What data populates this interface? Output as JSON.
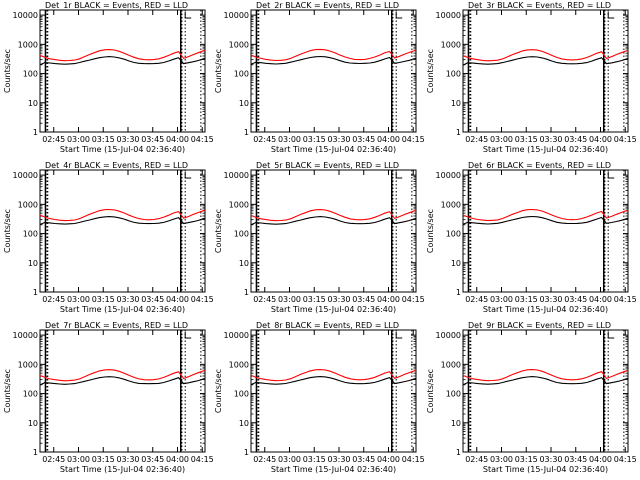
{
  "chart_data": {
    "type": "line",
    "grid": false,
    "legend": "title",
    "xlabel": "Start Time (15-Jul-04 02:36:40)",
    "ylabel": "Counts/sec",
    "x_tick_labels": [
      "02:45",
      "03:00",
      "03:15",
      "03:30",
      "03:45",
      "04:00",
      "04:15"
    ],
    "x_ticks_min": [
      8.33,
      23.33,
      38.33,
      53.33,
      68.33,
      83.33,
      98.33
    ],
    "xlim": [
      0,
      100
    ],
    "y_tick_labels": [
      "1",
      "10",
      "100",
      "1000",
      "10000"
    ],
    "y_ticks": [
      1,
      10,
      100,
      1000,
      10000
    ],
    "ylim": [
      1,
      15000
    ],
    "yscale": "log",
    "markers_min": [
      3.3,
      4.2,
      4.7,
      85.3,
      86.0,
      88.0,
      97.5
    ],
    "x_min": [
      0,
      3,
      6,
      9,
      12,
      15,
      18,
      21,
      24,
      27,
      30,
      33,
      36,
      39,
      42,
      45,
      48,
      51,
      54,
      57,
      60,
      63,
      66,
      69,
      72,
      75,
      78,
      81,
      84,
      87,
      90,
      93,
      96,
      99,
      100
    ],
    "panels": [
      {
        "title": "Det_1r BLACK = Events, RED = LLD",
        "series": [
          {
            "name": "Events",
            "color": "#000000",
            "values": [
              200,
              240,
              230,
              220,
              215,
              210,
              215,
              220,
              240,
              265,
              290,
              320,
              350,
              370,
              380,
              370,
              345,
              310,
              270,
              240,
              225,
              220,
              218,
              220,
              225,
              240,
              270,
              310,
              350,
              220,
              235,
              255,
              280,
              320,
              330
            ]
          },
          {
            "name": "LLD",
            "color": "#ff0000",
            "values": [
              420,
              360,
              320,
              300,
              285,
              275,
              280,
              290,
              320,
              380,
              450,
              520,
              600,
              650,
              660,
              640,
              580,
              500,
              420,
              360,
              320,
              300,
              295,
              300,
              320,
              360,
              420,
              500,
              560,
              330,
              380,
              450,
              520,
              600,
              620
            ]
          }
        ]
      },
      {
        "title": "Det_2r BLACK = Events, RED = LLD",
        "series": [
          {
            "name": "Events",
            "color": "#000000",
            "values": [
              210,
              245,
              235,
              225,
              218,
              213,
              218,
              225,
              245,
              270,
              295,
              325,
              355,
              375,
              385,
              375,
              350,
              315,
              275,
              245,
              230,
              224,
              222,
              224,
              230,
              245,
              275,
              315,
              355,
              225,
              240,
              260,
              285,
              325,
              335
            ]
          },
          {
            "name": "LLD",
            "color": "#ff0000",
            "values": [
              430,
              370,
              330,
              305,
              290,
              280,
              285,
              295,
              330,
              390,
              460,
              530,
              610,
              660,
              670,
              650,
              590,
              510,
              430,
              370,
              330,
              305,
              300,
              305,
              330,
              370,
              430,
              510,
              570,
              340,
              390,
              460,
              530,
              610,
              630
            ]
          }
        ]
      },
      {
        "title": "Det_3r BLACK = Events, RED = LLD",
        "series": [
          {
            "name": "Events",
            "color": "#000000",
            "values": [
              195,
              235,
              228,
              220,
              214,
              209,
              214,
              220,
              238,
              262,
              288,
              318,
              348,
              368,
              378,
              368,
              343,
              308,
              268,
              238,
              224,
              218,
              216,
              218,
              224,
              238,
              268,
              308,
              348,
              218,
              232,
              252,
              278,
              318,
              328
            ]
          },
          {
            "name": "LLD",
            "color": "#ff0000",
            "values": [
              410,
              355,
              318,
              298,
              283,
              273,
              278,
              288,
              318,
              375,
              445,
              515,
              595,
              645,
              655,
              635,
              575,
              495,
              415,
              355,
              318,
              298,
              293,
              298,
              318,
              355,
              415,
              495,
              555,
              328,
              378,
              448,
              518,
              598,
              618
            ]
          }
        ]
      },
      {
        "title": "Det_4r BLACK = Events, RED = LLD",
        "series": [
          {
            "name": "Events",
            "color": "#000000",
            "values": [
              205,
              242,
              232,
              222,
              216,
              211,
              216,
              222,
              242,
              267,
              292,
              322,
              352,
              372,
              382,
              372,
              347,
              312,
              272,
              242,
              227,
              221,
              219,
              221,
              227,
              242,
              272,
              312,
              352,
              222,
              237,
              257,
              282,
              322,
              332
            ]
          },
          {
            "name": "LLD",
            "color": "#ff0000",
            "values": [
              425,
              365,
              325,
              302,
              287,
              277,
              282,
              292,
              325,
              385,
              455,
              525,
              605,
              655,
              665,
              645,
              585,
              505,
              425,
              365,
              325,
              302,
              297,
              302,
              325,
              365,
              425,
              505,
              565,
              335,
              385,
              455,
              525,
              605,
              625
            ]
          }
        ]
      },
      {
        "title": "Det_5r BLACK = Events, RED = LLD",
        "series": [
          {
            "name": "Events",
            "color": "#000000",
            "values": [
              200,
              240,
              230,
              220,
              215,
              210,
              215,
              220,
              240,
              265,
              290,
              320,
              350,
              370,
              380,
              370,
              345,
              310,
              270,
              240,
              225,
              220,
              218,
              220,
              225,
              240,
              270,
              310,
              350,
              220,
              235,
              255,
              280,
              320,
              330
            ]
          },
          {
            "name": "LLD",
            "color": "#ff0000",
            "values": [
              420,
              360,
              320,
              300,
              285,
              275,
              280,
              290,
              320,
              380,
              450,
              520,
              600,
              650,
              660,
              640,
              580,
              500,
              420,
              360,
              320,
              300,
              295,
              300,
              320,
              360,
              420,
              500,
              560,
              330,
              380,
              450,
              520,
              600,
              620
            ]
          }
        ]
      },
      {
        "title": "Det_6r BLACK = Events, RED = LLD",
        "series": [
          {
            "name": "Events",
            "color": "#000000",
            "values": [
              208,
              244,
              234,
              224,
              217,
              212,
              217,
              224,
              244,
              269,
              294,
              324,
              354,
              374,
              384,
              374,
              349,
              314,
              274,
              244,
              229,
              223,
              221,
              223,
              229,
              244,
              274,
              314,
              354,
              224,
              239,
              259,
              284,
              324,
              334
            ]
          },
          {
            "name": "LLD",
            "color": "#ff0000",
            "values": [
              428,
              368,
              328,
              304,
              289,
              279,
              284,
              294,
              328,
              388,
              458,
              528,
              608,
              658,
              668,
              648,
              588,
              508,
              428,
              368,
              328,
              304,
              299,
              304,
              328,
              368,
              428,
              508,
              568,
              338,
              388,
              458,
              528,
              608,
              628
            ]
          }
        ]
      },
      {
        "title": "Det_7r BLACK = Events, RED = LLD",
        "series": [
          {
            "name": "Events",
            "color": "#000000",
            "values": [
              198,
              238,
              229,
              219,
              213,
              208,
              213,
              219,
              239,
              264,
              289,
              319,
              349,
              369,
              379,
              369,
              344,
              309,
              269,
              239,
              223,
              219,
              217,
              219,
              223,
              239,
              269,
              309,
              349,
              219,
              234,
              254,
              279,
              319,
              329
            ]
          },
          {
            "name": "LLD",
            "color": "#ff0000",
            "values": [
              415,
              358,
              319,
              299,
              284,
              274,
              279,
              289,
              319,
              378,
              448,
              518,
              598,
              648,
              658,
              638,
              578,
              498,
              418,
              358,
              319,
              299,
              294,
              299,
              319,
              358,
              418,
              498,
              558,
              329,
              379,
              449,
              519,
              599,
              619
            ]
          }
        ]
      },
      {
        "title": "Det_8r BLACK = Events, RED = LLD",
        "series": [
          {
            "name": "Events",
            "color": "#000000",
            "values": [
              203,
              241,
              231,
              221,
              215,
              210,
              215,
              221,
              241,
              266,
              291,
              321,
              351,
              371,
              381,
              371,
              346,
              311,
              271,
              241,
              226,
              220,
              218,
              220,
              226,
              241,
              271,
              311,
              351,
              221,
              236,
              256,
              281,
              321,
              331
            ]
          },
          {
            "name": "LLD",
            "color": "#ff0000",
            "values": [
              422,
              362,
              322,
              301,
              286,
              276,
              281,
              291,
              322,
              382,
              452,
              522,
              602,
              652,
              662,
              642,
              582,
              502,
              422,
              362,
              322,
              301,
              296,
              301,
              322,
              362,
              422,
              502,
              562,
              332,
              382,
              452,
              522,
              602,
              622
            ]
          }
        ]
      },
      {
        "title": "Det_9r BLACK = Events, RED = LLD",
        "series": [
          {
            "name": "Events",
            "color": "#000000",
            "values": [
              199,
              239,
              230,
              220,
              214,
              209,
              214,
              220,
              240,
              265,
              290,
              320,
              350,
              370,
              380,
              370,
              345,
              310,
              270,
              240,
              225,
              219,
              217,
              219,
              225,
              240,
              270,
              310,
              350,
              220,
              235,
              255,
              280,
              320,
              330
            ]
          },
          {
            "name": "LLD",
            "color": "#ff0000",
            "values": [
              418,
              359,
              320,
              300,
              285,
              275,
              280,
              290,
              320,
              379,
              449,
              519,
              599,
              649,
              659,
              639,
              579,
              499,
              419,
              359,
              320,
              300,
              295,
              300,
              320,
              359,
              419,
              499,
              559,
              330,
              380,
              450,
              520,
              600,
              620
            ]
          }
        ]
      }
    ]
  }
}
